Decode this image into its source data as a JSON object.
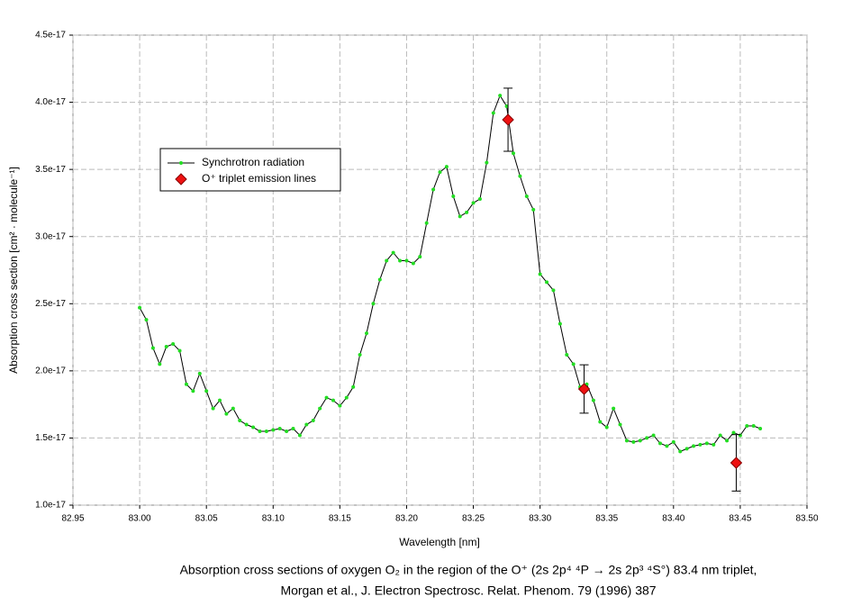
{
  "chart_data": {
    "type": "line",
    "xlabel": "Wavelength [nm]",
    "ylabel": "Absorption cross section [cm² · molecule⁻¹]",
    "caption": [
      "Absorption cross sections of oxygen O₂ in the region of the O⁺ (2s 2p⁴ ⁴P → 2s 2p³ ⁴S°) 83.4 nm triplet,",
      "Morgan et al., J. Electron Spectrosc. Relat. Phenom. 79 (1996) 387"
    ],
    "xlim": [
      82.95,
      83.5
    ],
    "xticks": [
      82.95,
      {
        "value": 83.0,
        "label": "83.00"
      },
      83.05,
      {
        "value": 83.1,
        "label": "83.10"
      },
      83.15,
      {
        "value": 83.2,
        "label": "83.20"
      },
      83.25,
      {
        "value": 83.3,
        "label": "83.30"
      },
      83.35,
      {
        "value": 83.4,
        "label": "83.40"
      },
      83.45,
      {
        "value": 83.5,
        "label": "83.50"
      }
    ],
    "ylim": [
      1e-17,
      4.5e-17
    ],
    "yticks": [
      {
        "value": 1e-17,
        "label": "1.0e-17"
      },
      {
        "value": 1.5e-17,
        "label": "1.5e-17"
      },
      {
        "value": 2e-17,
        "label": "2.0e-17"
      },
      {
        "value": 2.5e-17,
        "label": "2.5e-17"
      },
      {
        "value": 3e-17,
        "label": "3.0e-17"
      },
      {
        "value": 3.5e-17,
        "label": "3.5e-17"
      },
      {
        "value": 4e-17,
        "label": "4.0e-17"
      },
      {
        "value": 4.5e-17,
        "label": "4.5e-17"
      }
    ],
    "grid": true,
    "series": [
      {
        "name": "Synchrotron radiation",
        "type": "line",
        "color": "#000000",
        "marker_color": "#22dd22",
        "x": [
          83.0,
          83.005,
          83.01,
          83.015,
          83.02,
          83.025,
          83.03,
          83.035,
          83.04,
          83.045,
          83.05,
          83.055,
          83.06,
          83.065,
          83.07,
          83.075,
          83.08,
          83.085,
          83.09,
          83.095,
          83.1,
          83.105,
          83.11,
          83.115,
          83.12,
          83.125,
          83.13,
          83.135,
          83.14,
          83.145,
          83.15,
          83.155,
          83.16,
          83.165,
          83.17,
          83.175,
          83.18,
          83.185,
          83.19,
          83.195,
          83.2,
          83.205,
          83.21,
          83.215,
          83.22,
          83.225,
          83.23,
          83.235,
          83.24,
          83.245,
          83.25,
          83.255,
          83.26,
          83.265,
          83.27,
          83.275,
          83.28,
          83.285,
          83.29,
          83.295,
          83.3,
          83.305,
          83.31,
          83.315,
          83.32,
          83.325,
          83.33,
          83.335,
          83.34,
          83.345,
          83.35,
          83.355,
          83.36,
          83.365,
          83.37,
          83.375,
          83.38,
          83.385,
          83.39,
          83.395,
          83.4,
          83.405,
          83.41,
          83.415,
          83.42,
          83.425,
          83.43,
          83.435,
          83.44,
          83.445,
          83.45,
          83.455,
          83.46,
          83.465
        ],
        "values": [
          2.47e-17,
          2.38e-17,
          2.17e-17,
          2.05e-17,
          2.18e-17,
          2.2e-17,
          2.15e-17,
          1.9e-17,
          1.85e-17,
          1.98e-17,
          1.85e-17,
          1.72e-17,
          1.78e-17,
          1.68e-17,
          1.72e-17,
          1.63e-17,
          1.6e-17,
          1.58e-17,
          1.55e-17,
          1.55e-17,
          1.56e-17,
          1.57e-17,
          1.55e-17,
          1.57e-17,
          1.52e-17,
          1.6e-17,
          1.63e-17,
          1.72e-17,
          1.8e-17,
          1.78e-17,
          1.74e-17,
          1.8e-17,
          1.88e-17,
          2.12e-17,
          2.28e-17,
          2.5e-17,
          2.68e-17,
          2.82e-17,
          2.88e-17,
          2.82e-17,
          2.82e-17,
          2.8e-17,
          2.85e-17,
          3.1e-17,
          3.35e-17,
          3.48e-17,
          3.52e-17,
          3.3e-17,
          3.15e-17,
          3.18e-17,
          3.25e-17,
          3.28e-17,
          3.55e-17,
          3.92e-17,
          4.05e-17,
          3.97e-17,
          3.62e-17,
          3.45e-17,
          3.3e-17,
          3.2e-17,
          2.72e-17,
          2.66e-17,
          2.6e-17,
          2.35e-17,
          2.12e-17,
          2.05e-17,
          1.88e-17,
          1.9e-17,
          1.78e-17,
          1.62e-17,
          1.58e-17,
          1.72e-17,
          1.6e-17,
          1.48e-17,
          1.47e-17,
          1.48e-17,
          1.5e-17,
          1.52e-17,
          1.46e-17,
          1.44e-17,
          1.47e-17,
          1.4e-17,
          1.42e-17,
          1.44e-17,
          1.45e-17,
          1.46e-17,
          1.45e-17,
          1.52e-17,
          1.48e-17,
          1.54e-17,
          1.52e-17,
          1.59e-17,
          1.59e-17,
          1.57e-17
        ]
      },
      {
        "name": "O⁺ triplet emission lines",
        "type": "scatter",
        "color": "#ee1111",
        "x": [
          83.276,
          83.333,
          83.447
        ],
        "values": [
          3.87e-17,
          1.865e-17,
          1.315e-17
        ],
        "errors": [
          2.35e-18,
          1.8e-18,
          2.1e-18
        ]
      }
    ]
  }
}
